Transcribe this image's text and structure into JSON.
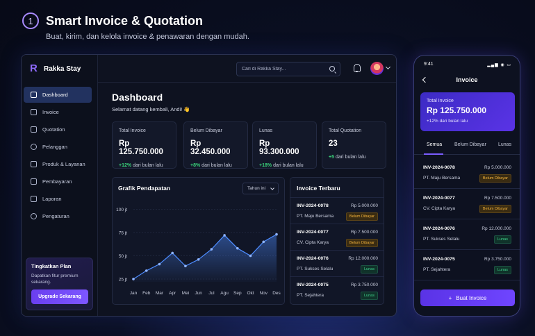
{
  "header": {
    "step": "1",
    "title": "Smart Invoice & Quotation",
    "subtitle": "Buat, kirim, dan kelola invoice & penawaran dengan mudah."
  },
  "app": {
    "brand": "Rakka Stay",
    "search_placeholder": "Cari di Rakka Stay...",
    "nav": [
      {
        "label": "Dashboard",
        "icon": "dashboard-icon",
        "active": true
      },
      {
        "label": "Invoice",
        "icon": "invoice-icon"
      },
      {
        "label": "Quotation",
        "icon": "quotation-icon"
      },
      {
        "label": "Pelanggan",
        "icon": "users-icon"
      },
      {
        "label": "Produk & Layanan",
        "icon": "box-icon"
      },
      {
        "label": "Pembayaran",
        "icon": "payment-icon"
      },
      {
        "label": "Laporan",
        "icon": "report-icon"
      },
      {
        "label": "Pengaturan",
        "icon": "gear-icon"
      }
    ],
    "upgrade": {
      "title": "Tingkatkan Plan",
      "desc": "Dapatkan fitur premium sekarang.",
      "button": "Upgrade Sekarang"
    },
    "dashboard": {
      "title": "Dashboard",
      "subtitle": "Selamat datang kembali, Andi! 👋"
    },
    "stats": [
      {
        "label": "Total Invoice",
        "value": "Rp 125.750.000",
        "change": "+12%",
        "suffix": "dari bulan lalu"
      },
      {
        "label": "Belum Dibayar",
        "value": "Rp 32.450.000",
        "change": "+8%",
        "suffix": "dari bulan lalu"
      },
      {
        "label": "Lunas",
        "value": "Rp 93.300.000",
        "change": "+18%",
        "suffix": "dari bulan lalu"
      },
      {
        "label": "Total Quotation",
        "value": "23",
        "change": "+5",
        "suffix": "dari bulan lalu"
      }
    ],
    "chart_title": "Grafik Pendapatan",
    "chart_range": "Tahun ini",
    "recent_title": "Invoice Terbaru",
    "recent": [
      {
        "id": "INV-2024-0078",
        "amount": "Rp 5.000.000",
        "company": "PT. Maju Bersama",
        "status": "Belum Dibayar",
        "type": "warn"
      },
      {
        "id": "INV-2024-0077",
        "amount": "Rp 7.500.000",
        "company": "CV. Cipta Karya",
        "status": "Belum Dibayar",
        "type": "warn"
      },
      {
        "id": "INV-2024-0076",
        "amount": "Rp 12.000.000",
        "company": "PT. Sukses Selalu",
        "status": "Lunas",
        "type": "ok"
      },
      {
        "id": "INV-2024-0075",
        "amount": "Rp 3.750.000",
        "company": "PT. Sejahtera",
        "status": "Lunas",
        "type": "ok"
      }
    ]
  },
  "chart_data": {
    "type": "area",
    "title": "Grafik Pendapatan",
    "categories": [
      "Jan",
      "Feb",
      "Mar",
      "Apr",
      "Mei",
      "Jun",
      "Jul",
      "Agu",
      "Sep",
      "Okt",
      "Nov",
      "Des"
    ],
    "values": [
      25,
      34,
      41,
      53,
      39,
      46,
      57,
      72,
      58,
      50,
      65,
      73
    ],
    "yticks": [
      "25 jt",
      "50 jt",
      "75 jt",
      "100 jt"
    ],
    "ytick_values": [
      25,
      50,
      75,
      100
    ],
    "ylim": [
      22,
      104
    ],
    "grid": true,
    "color": "#4d8cff"
  },
  "phone": {
    "time": "9:41",
    "status": "▂▄▆ ◉ ▭",
    "title": "Invoice",
    "card": {
      "label": "Total Invoice",
      "value": "Rp 125.750.000",
      "change": "+12% dari bulan lalu"
    },
    "tabs": [
      "Semua",
      "Belum Dibayar",
      "Lunas"
    ],
    "rows": [
      {
        "id": "INV-2024-0078",
        "amount": "Rp 5.000.000",
        "company": "PT. Maju Bersama",
        "status": "Belum Dibayar",
        "type": "warn"
      },
      {
        "id": "INV-2024-0077",
        "amount": "Rp 7.500.000",
        "company": "CV. Cipta Karya",
        "status": "Belum Dibayar",
        "type": "warn"
      },
      {
        "id": "INV-2024-0076",
        "amount": "Rp 12.000.000",
        "company": "PT. Sukses Selalu",
        "status": "Lunas",
        "type": "ok"
      },
      {
        "id": "INV-2024-0075",
        "amount": "Rp 3.750.000",
        "company": "PT. Sejahtera",
        "status": "Lunas",
        "type": "ok"
      }
    ],
    "button": "Buat Invoice"
  }
}
